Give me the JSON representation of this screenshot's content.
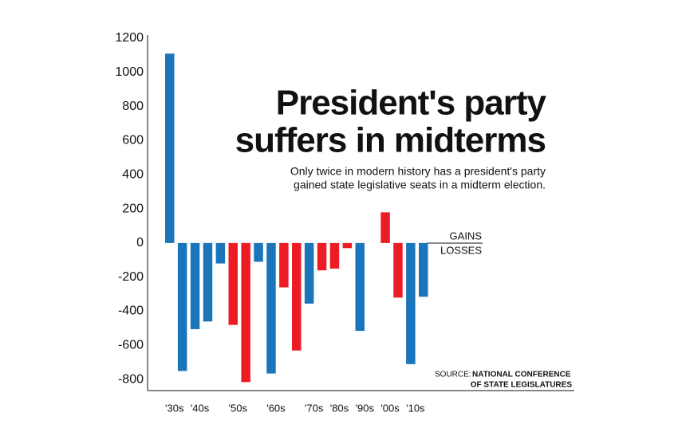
{
  "chart_data": {
    "type": "bar",
    "title": [
      "President's party",
      "suffers in midterms"
    ],
    "subtitle": [
      "Only twice in modern history has a president's party",
      "gained state legislative seats in a midterm election."
    ],
    "annotations": {
      "gains": "GAINS",
      "losses": "LOSSES"
    },
    "source_label": "SOURCE:",
    "source": [
      "NATIONAL CONFERENCE",
      "OF STATE LEGISLATURES"
    ],
    "categories": [
      "'30s",
      null,
      "'40s",
      null,
      null,
      "'50s",
      null,
      null,
      "'60s",
      null,
      null,
      "'70s",
      null,
      "'80s",
      null,
      "'90s",
      null,
      "'00s",
      null,
      "'10s",
      null
    ],
    "values": [
      1110,
      -750,
      -505,
      -460,
      -120,
      -480,
      -815,
      -110,
      -765,
      -260,
      -630,
      -355,
      -160,
      -150,
      -30,
      -515,
      null,
      180,
      -320,
      -710,
      -315
    ],
    "colors": [
      "#1b75bb",
      "#1b75bb",
      "#1b75bb",
      "#1b75bb",
      "#1b75bb",
      "#ed1c24",
      "#ed1c24",
      "#1b75bb",
      "#1b75bb",
      "#ed1c24",
      "#ed1c24",
      "#1b75bb",
      "#ed1c24",
      "#ed1c24",
      "#ed1c24",
      "#1b75bb",
      null,
      "#ed1c24",
      "#ed1c24",
      "#1b75bb",
      "#1b75bb"
    ],
    "ylim": [
      -865,
      1215
    ],
    "yticks": [
      -800,
      -600,
      -400,
      -200,
      0,
      200,
      400,
      600,
      800,
      1000,
      1200
    ]
  }
}
